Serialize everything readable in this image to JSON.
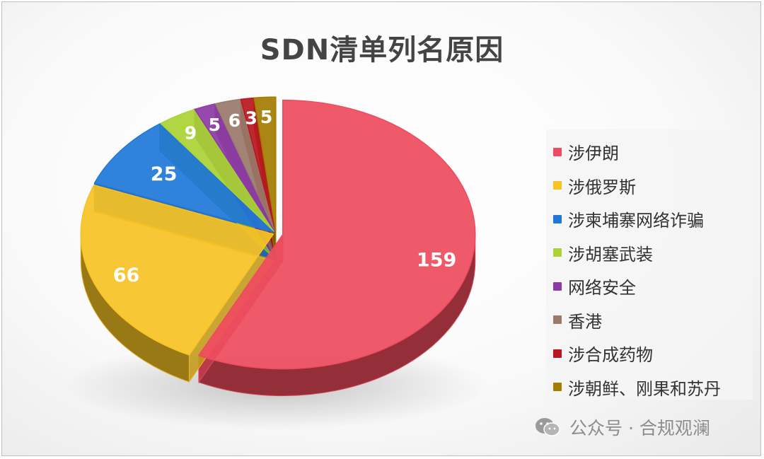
{
  "chart_data": {
    "type": "pie",
    "title": "SDN清单列名原因",
    "categories": [
      "涉伊朗",
      "涉俄罗斯",
      "涉柬埔寨网络诈骗",
      "涉胡塞武装",
      "网络安全",
      "香港",
      "涉合成药物",
      "涉朝鲜、刚果和苏丹"
    ],
    "values": [
      159,
      66,
      25,
      9,
      5,
      6,
      3,
      5
    ],
    "colors": [
      "#ee4c5e",
      "#f6c224",
      "#1f77d8",
      "#a9d433",
      "#8c3aa6",
      "#9a7a6a",
      "#b81620",
      "#a37c00"
    ],
    "legend_position": "right",
    "style": "3d-exploded"
  },
  "watermark": {
    "text": "公众号 · 合规观澜",
    "icon": "wechat-icon"
  }
}
